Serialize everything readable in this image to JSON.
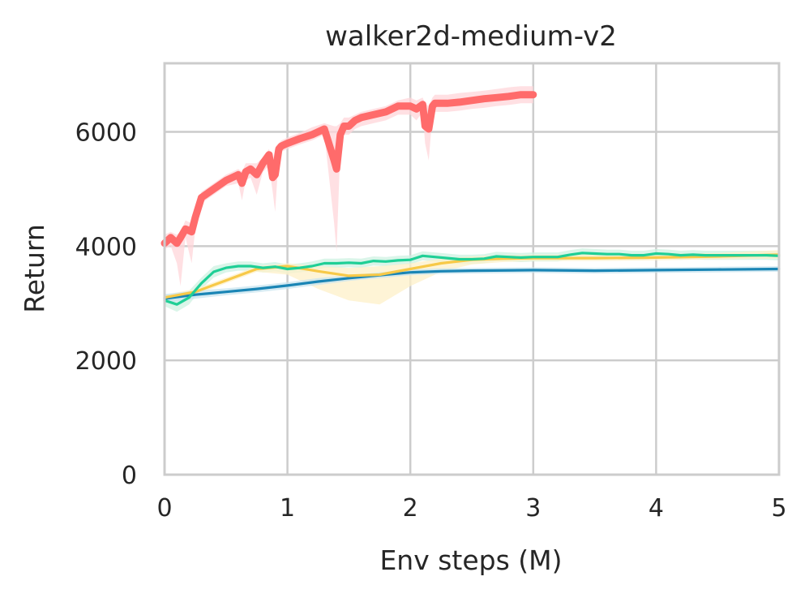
{
  "chart_data": {
    "type": "line",
    "title": "walker2d-medium-v2",
    "xlabel": "Env steps (M)",
    "ylabel": "Return",
    "xlim": [
      0,
      5
    ],
    "ylim": [
      0,
      7200
    ],
    "xticks": [
      0,
      1,
      2,
      3,
      4,
      5
    ],
    "xtick_labels": [
      "0",
      "1",
      "2",
      "3",
      "4",
      "5"
    ],
    "yticks": [
      0,
      2000,
      4000,
      6000
    ],
    "ytick_labels": [
      "0",
      "2000",
      "4000",
      "6000"
    ],
    "grid": true,
    "legend": "none",
    "series": [
      {
        "color": "#ff6b6b",
        "band_color": "#ffd6d9",
        "x": [
          0,
          0.05,
          0.1,
          0.13,
          0.17,
          0.22,
          0.25,
          0.3,
          0.4,
          0.5,
          0.6,
          0.63,
          0.66,
          0.7,
          0.75,
          0.8,
          0.85,
          0.88,
          0.9,
          0.93,
          0.95,
          1.0,
          1.1,
          1.2,
          1.3,
          1.38,
          1.4,
          1.43,
          1.46,
          1.5,
          1.55,
          1.6,
          1.7,
          1.8,
          1.9,
          2.0,
          2.05,
          2.1,
          2.12,
          2.15,
          2.18,
          2.2,
          2.3,
          2.4,
          2.5,
          2.6,
          2.7,
          2.8,
          2.9,
          3.0
        ],
        "y": [
          4050,
          4150,
          4050,
          4150,
          4300,
          4250,
          4500,
          4850,
          5000,
          5150,
          5250,
          5100,
          5300,
          5350,
          5250,
          5450,
          5600,
          5200,
          5250,
          5700,
          5750,
          5800,
          5880,
          5950,
          6050,
          5500,
          5350,
          5950,
          6100,
          6100,
          6200,
          6250,
          6300,
          6350,
          6450,
          6450,
          6400,
          6480,
          6100,
          6050,
          6450,
          6500,
          6500,
          6520,
          6550,
          6580,
          6600,
          6620,
          6650,
          6650
        ],
        "lower": [
          3950,
          4000,
          3700,
          3300,
          4150,
          3700,
          4300,
          4750,
          4900,
          5050,
          5100,
          4800,
          5150,
          5200,
          4900,
          5300,
          5400,
          4950,
          4600,
          5600,
          5650,
          5700,
          5780,
          5850,
          5950,
          4400,
          3900,
          5700,
          5950,
          5950,
          6050,
          6100,
          6150,
          6200,
          6300,
          6300,
          6200,
          6350,
          5800,
          5500,
          6300,
          6350,
          6350,
          6370,
          6400,
          6420,
          6450,
          6470,
          6500,
          6500
        ],
        "upper": [
          4200,
          4250,
          4200,
          4250,
          4450,
          4400,
          4650,
          4950,
          5100,
          5250,
          5350,
          5300,
          5450,
          5450,
          5450,
          5550,
          5700,
          5500,
          5700,
          5800,
          5850,
          5900,
          5980,
          6080,
          6150,
          6100,
          6100,
          6150,
          6250,
          6250,
          6300,
          6350,
          6400,
          6450,
          6550,
          6600,
          6550,
          6600,
          6500,
          6450,
          6600,
          6650,
          6650,
          6680,
          6700,
          6720,
          6750,
          6780,
          6800,
          6800
        ]
      },
      {
        "color": "#1fcf96",
        "band_color": "#cdf2e2",
        "x": [
          0,
          0.1,
          0.2,
          0.3,
          0.4,
          0.5,
          0.6,
          0.7,
          0.8,
          0.9,
          1.0,
          1.1,
          1.2,
          1.3,
          1.4,
          1.5,
          1.6,
          1.7,
          1.8,
          1.9,
          2.0,
          2.1,
          2.2,
          2.3,
          2.4,
          2.5,
          2.6,
          2.7,
          2.8,
          2.9,
          3.0,
          3.1,
          3.2,
          3.3,
          3.4,
          3.5,
          3.6,
          3.7,
          3.8,
          3.9,
          4.0,
          4.1,
          4.2,
          4.3,
          4.4,
          4.5,
          4.6,
          4.7,
          4.8,
          4.9,
          5.0
        ],
        "y": [
          3050,
          2980,
          3100,
          3350,
          3550,
          3620,
          3650,
          3650,
          3620,
          3640,
          3600,
          3620,
          3650,
          3700,
          3700,
          3710,
          3700,
          3740,
          3730,
          3750,
          3760,
          3830,
          3810,
          3790,
          3770,
          3770,
          3780,
          3820,
          3810,
          3800,
          3810,
          3810,
          3810,
          3850,
          3880,
          3870,
          3860,
          3860,
          3840,
          3840,
          3870,
          3860,
          3840,
          3850,
          3840,
          3840,
          3840,
          3840,
          3840,
          3840,
          3830
        ],
        "lower": [
          2950,
          2850,
          2980,
          3250,
          3450,
          3540,
          3570,
          3570,
          3540,
          3560,
          3520,
          3540,
          3570,
          3620,
          3620,
          3630,
          3620,
          3660,
          3650,
          3670,
          3680,
          3750,
          3730,
          3710,
          3690,
          3690,
          3700,
          3740,
          3730,
          3720,
          3730,
          3730,
          3730,
          3770,
          3800,
          3790,
          3780,
          3780,
          3760,
          3760,
          3790,
          3780,
          3760,
          3770,
          3760,
          3760,
          3760,
          3760,
          3760,
          3760,
          3750
        ],
        "upper": [
          3150,
          3100,
          3220,
          3450,
          3650,
          3700,
          3730,
          3730,
          3700,
          3720,
          3680,
          3700,
          3730,
          3780,
          3780,
          3790,
          3780,
          3820,
          3810,
          3830,
          3840,
          3910,
          3890,
          3870,
          3850,
          3850,
          3860,
          3900,
          3890,
          3880,
          3890,
          3890,
          3890,
          3930,
          3960,
          3950,
          3940,
          3940,
          3920,
          3920,
          3950,
          3940,
          3920,
          3930,
          3920,
          3920,
          3920,
          3920,
          3920,
          3920,
          3910
        ]
      },
      {
        "color": "#f7c948",
        "band_color": "#fdf0c8",
        "x": [
          0,
          0.25,
          0.5,
          0.75,
          1.0,
          1.25,
          1.5,
          1.75,
          2.0,
          2.25,
          2.5,
          2.75,
          3.0,
          3.5,
          4.0,
          4.5,
          5.0
        ],
        "y": [
          3100,
          3200,
          3400,
          3600,
          3650,
          3560,
          3480,
          3500,
          3600,
          3700,
          3760,
          3780,
          3790,
          3790,
          3800,
          3820,
          3850
        ],
        "lower": [
          3050,
          3150,
          3350,
          3550,
          3500,
          3250,
          3050,
          2980,
          3300,
          3550,
          3680,
          3720,
          3740,
          3740,
          3750,
          3770,
          3780
        ],
        "upper": [
          3150,
          3250,
          3450,
          3650,
          3700,
          3650,
          3620,
          3650,
          3700,
          3780,
          3820,
          3840,
          3850,
          3850,
          3860,
          3880,
          3930
        ]
      },
      {
        "color": "#1a85b5",
        "band_color": "#c8e4ef",
        "x": [
          0,
          0.25,
          0.5,
          0.75,
          1.0,
          1.25,
          1.5,
          1.75,
          2.0,
          2.25,
          2.5,
          3.0,
          3.5,
          4.0,
          4.5,
          5.0
        ],
        "y": [
          3080,
          3150,
          3200,
          3250,
          3310,
          3380,
          3440,
          3490,
          3540,
          3560,
          3570,
          3580,
          3570,
          3580,
          3590,
          3600
        ],
        "lower": [
          3000,
          3080,
          3140,
          3190,
          3250,
          3320,
          3390,
          3440,
          3490,
          3510,
          3520,
          3530,
          3520,
          3530,
          3540,
          3550
        ],
        "upper": [
          3160,
          3220,
          3260,
          3310,
          3370,
          3440,
          3490,
          3540,
          3590,
          3610,
          3620,
          3630,
          3620,
          3630,
          3640,
          3650
        ]
      }
    ]
  }
}
